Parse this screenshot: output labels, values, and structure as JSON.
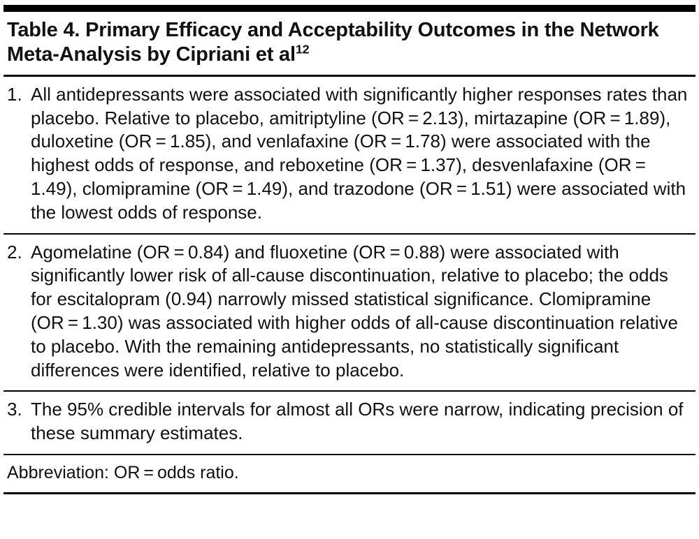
{
  "table": {
    "title": "Table 4. Primary Efficacy and Acceptability Outcomes in the Network Meta-Analysis by Cipriani et al",
    "title_superscript": "12",
    "items": [
      {
        "number": "1.",
        "text": "All antidepressants were associated with significantly higher responses rates than placebo. Relative to placebo, amitriptyline (OR = 2.13), mirtazapine (OR = 1.89), duloxetine (OR = 1.85), and venlafaxine (OR = 1.78) were associated with the highest odds of response, and reboxetine (OR = 1.37), desvenlafaxine (OR = 1.49), clomipramine (OR = 1.49), and trazodone (OR = 1.51) were associated with the lowest odds of response."
      },
      {
        "number": "2.",
        "text": "Agomelatine (OR = 0.84) and fluoxetine (OR = 0.88) were associated with significantly lower risk of all-cause discontinuation, relative to placebo; the odds for escitalopram (0.94) narrowly missed statistical significance. Clomipramine (OR = 1.30) was associated with higher odds of all-cause discontinuation relative to placebo. With the remaining antidepressants, no statistically significant differences were identified, relative to placebo."
      },
      {
        "number": "3.",
        "text": "The 95% credible intervals for almost all ORs were narrow, indicating precision of these summary estimates."
      }
    ],
    "footnote": "Abbreviation: OR = odds ratio."
  },
  "colors": {
    "text": "#111111",
    "rule": "#000000",
    "background": "#ffffff"
  }
}
